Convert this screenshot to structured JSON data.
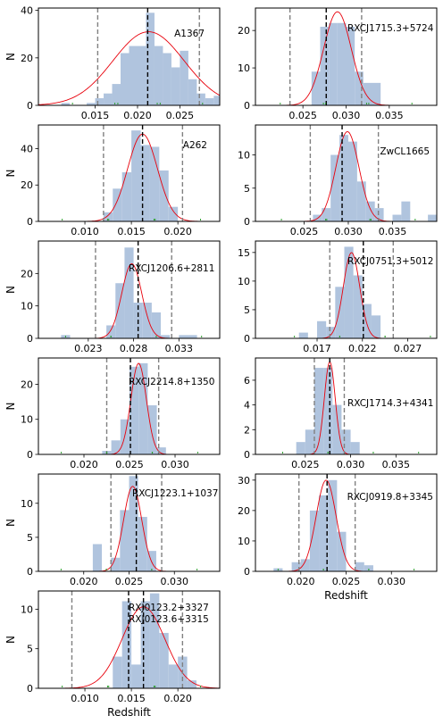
{
  "chart_data": [
    {
      "type": "bar",
      "title": "A1367",
      "xlabel": "",
      "ylabel": "N",
      "xlim": [
        0.0083,
        0.0297
      ],
      "ylim": [
        0,
        41
      ],
      "xticks": [
        0.015,
        0.02,
        0.025
      ],
      "xtick_labels": [
        "0.015",
        "0.020",
        "0.025"
      ],
      "yticks": [
        0,
        20,
        40
      ],
      "ytick_labels": [
        "0",
        "20",
        "40"
      ],
      "bins": [
        0.0115,
        0.0125,
        0.0135,
        0.0145,
        0.0155,
        0.0165,
        0.0175,
        0.0185,
        0.0195,
        0.0205,
        0.0215,
        0.0225,
        0.0235,
        0.0245,
        0.0255,
        0.0265,
        0.0275,
        0.0285,
        0.0295
      ],
      "counts": [
        1,
        0,
        0,
        1,
        3,
        5,
        9,
        22,
        25,
        25,
        39,
        25,
        22,
        16,
        23,
        11,
        5,
        3,
        4
      ],
      "gauss_curve": {
        "mu": 0.0213,
        "sigma": 0.0042,
        "peak": 31
      },
      "center_line": 0.0212,
      "limit_lines": [
        0.0153,
        0.0273
      ],
      "grid": false
    },
    {
      "type": "bar",
      "title": "RXCJ1715.3+5724",
      "xlabel": "",
      "ylabel": "",
      "xlim": [
        0.0195,
        0.0405
      ],
      "ylim": [
        0,
        26
      ],
      "xticks": [
        0.025,
        0.03,
        0.035
      ],
      "xtick_labels": [
        "0.025",
        "0.030",
        "0.035"
      ],
      "yticks": [
        0,
        10,
        20
      ],
      "ytick_labels": [
        "0",
        "10",
        "20"
      ],
      "bins": [
        0.0265,
        0.0275,
        0.0285,
        0.0295,
        0.0305,
        0.0315,
        0.0325,
        0.0335
      ],
      "counts": [
        9,
        21,
        22,
        22,
        21,
        9,
        6,
        6
      ],
      "gauss_curve": {
        "mu": 0.029,
        "sigma": 0.0016,
        "peak": 25
      },
      "center_line": 0.0277,
      "limit_lines": [
        0.0235,
        0.0318
      ],
      "grid": false
    },
    {
      "type": "bar",
      "title": "A262",
      "xlabel": "",
      "ylabel": "N",
      "xlim": [
        0.005,
        0.0245
      ],
      "ylim": [
        0,
        53
      ],
      "xticks": [
        0.01,
        0.015,
        0.02
      ],
      "xtick_labels": [
        "0.010",
        "0.015",
        "0.020"
      ],
      "yticks": [
        0,
        20,
        40
      ],
      "ytick_labels": [
        "0",
        "20",
        "40"
      ],
      "bins": [
        0.0125,
        0.0135,
        0.0145,
        0.0155,
        0.0165,
        0.0175,
        0.0185,
        0.0195
      ],
      "counts": [
        5,
        18,
        27,
        50,
        42,
        41,
        28,
        8
      ],
      "gauss_curve": {
        "mu": 0.0162,
        "sigma": 0.0016,
        "peak": 48
      },
      "center_line": 0.0162,
      "limit_lines": [
        0.012,
        0.0205
      ],
      "grid": false
    },
    {
      "type": "bar",
      "title": "ZwCL1665",
      "xlabel": "",
      "ylabel": "",
      "xlim": [
        0.0195,
        0.04
      ],
      "ylim": [
        0,
        14.5
      ],
      "xticks": [
        0.025,
        0.03,
        0.035
      ],
      "xtick_labels": [
        "0.025",
        "0.030",
        "0.035"
      ],
      "yticks": [
        0,
        5,
        10
      ],
      "ytick_labels": [
        "0",
        "5",
        "10"
      ],
      "bins": [
        0.0265,
        0.0275,
        0.0285,
        0.0295,
        0.0305,
        0.0315,
        0.0325,
        0.0335,
        0.0345,
        0.0355,
        0.0365,
        0.0375,
        0.0395
      ],
      "counts": [
        1,
        2,
        10,
        13,
        12,
        6,
        3,
        2,
        0,
        1,
        3,
        0,
        1
      ],
      "gauss_curve": {
        "mu": 0.0299,
        "sigma": 0.0013,
        "peak": 13.5
      },
      "center_line": 0.0293,
      "limit_lines": [
        0.0257,
        0.0334
      ],
      "grid": false
    },
    {
      "type": "bar",
      "title": "RXCJ1206.6+2811",
      "xlabel": "",
      "ylabel": "N",
      "xlim": [
        0.0175,
        0.0375
      ],
      "ylim": [
        0,
        30
      ],
      "xticks": [
        0.023,
        0.028,
        0.033
      ],
      "xtick_labels": [
        "0.023",
        "0.028",
        "0.033"
      ],
      "bins": [
        0.0205,
        0.0255,
        0.0265,
        0.0275,
        0.0285,
        0.0295,
        0.0305,
        0.0315,
        0.0335,
        0.0345
      ],
      "counts": [
        1,
        4,
        17,
        28,
        11,
        11,
        8,
        1,
        1,
        1
      ],
      "yticks": [
        0,
        10,
        20
      ],
      "ytick_labels": [
        "0",
        "10",
        "20"
      ],
      "gauss_curve": {
        "mu": 0.0278,
        "sigma": 0.0011,
        "peak": 23
      },
      "center_line": 0.0285,
      "limit_lines": [
        0.0238,
        0.0322
      ],
      "grid": false
    },
    {
      "type": "bar",
      "title": "RXCJ0751.3+5012",
      "xlabel": "",
      "ylabel": "",
      "xlim": [
        0.0102,
        0.0302
      ],
      "ylim": [
        0,
        17
      ],
      "xticks": [
        0.017,
        0.022,
        0.027
      ],
      "xtick_labels": [
        "0.017",
        "0.022",
        "0.027"
      ],
      "yticks": [
        0,
        5,
        10,
        15
      ],
      "ytick_labels": [
        "0",
        "5",
        "10",
        "15"
      ],
      "bins": [
        0.0155,
        0.0175,
        0.0185,
        0.0195,
        0.0205,
        0.0215,
        0.0225,
        0.0235
      ],
      "counts": [
        1,
        3,
        2,
        9,
        16,
        11,
        6,
        4
      ],
      "gauss_curve": {
        "mu": 0.0208,
        "sigma": 0.0009,
        "peak": 15
      },
      "center_line": 0.0221,
      "limit_lines": [
        0.0184,
        0.0254
      ],
      "grid": false
    },
    {
      "type": "bar",
      "title": "RXCJ2214.8+1350",
      "xlabel": "",
      "ylabel": "N",
      "xlim": [
        0.015,
        0.0349
      ],
      "ylim": [
        0,
        27.5
      ],
      "xticks": [
        0.02,
        0.025,
        0.03
      ],
      "xtick_labels": [
        "0.020",
        "0.025",
        "0.030"
      ],
      "yticks": [
        0,
        10,
        20
      ],
      "ytick_labels": [
        "0",
        "10",
        "20"
      ],
      "bins": [
        0.0225,
        0.0235,
        0.0245,
        0.0255,
        0.0265,
        0.0275,
        0.0285
      ],
      "counts": [
        1,
        4,
        10,
        25,
        26,
        14,
        2
      ],
      "gauss_curve": {
        "mu": 0.026,
        "sigma": 0.00085,
        "peak": 26
      },
      "center_line": 0.0251,
      "limit_lines": [
        0.0225,
        0.0282
      ],
      "grid": false
    },
    {
      "type": "bar",
      "title": "RXCJ1714.3+4341",
      "xlabel": "",
      "ylabel": "",
      "xlim": [
        0.0195,
        0.0395
      ],
      "ylim": [
        0,
        7.8
      ],
      "xticks": [
        0.025,
        0.03,
        0.035
      ],
      "xtick_labels": [
        "0.025",
        "0.030",
        "0.035"
      ],
      "yticks": [
        0,
        2,
        4,
        6
      ],
      "ytick_labels": [
        "0",
        "2",
        "4",
        "6"
      ],
      "bins": [
        0.0245,
        0.0255,
        0.0265,
        0.0275,
        0.0285,
        0.0295,
        0.0305
      ],
      "counts": [
        1,
        2,
        7,
        7,
        4,
        2,
        1
      ],
      "gauss_curve": {
        "mu": 0.0277,
        "sigma": 0.0006,
        "peak": 7.5
      },
      "center_line": 0.0277,
      "limit_lines": [
        0.026,
        0.0293
      ],
      "grid": false
    },
    {
      "type": "bar",
      "title": "RXCJ1223.1+1037",
      "xlabel": "",
      "ylabel": "N",
      "xlim": [
        0.015,
        0.035
      ],
      "ylim": [
        0,
        14.3
      ],
      "xticks": [
        0.02,
        0.025,
        0.03
      ],
      "xtick_labels": [
        "0.020",
        "0.025",
        "0.030"
      ],
      "yticks": [
        0,
        5,
        10
      ],
      "ytick_labels": [
        "0",
        "5",
        "10"
      ],
      "bins": [
        0.0215,
        0.0235,
        0.0245,
        0.0255,
        0.0265,
        0.0275
      ],
      "counts": [
        4,
        2,
        9,
        14,
        8,
        3
      ],
      "gauss_curve": {
        "mu": 0.0254,
        "sigma": 0.001,
        "peak": 12.5
      },
      "center_line": 0.0258,
      "limit_lines": [
        0.023,
        0.0286
      ],
      "grid": false
    },
    {
      "type": "bar",
      "title": "RXCJ0919.8+3345",
      "xlabel": "Redshift",
      "ylabel": "",
      "xlim": [
        0.015,
        0.035
      ],
      "ylim": [
        0,
        32
      ],
      "xticks": [
        0.02,
        0.025,
        0.03
      ],
      "xtick_labels": [
        "0.020",
        "0.025",
        "0.030"
      ],
      "yticks": [
        0,
        10,
        20,
        30
      ],
      "ytick_labels": [
        "0",
        "10",
        "20",
        "30"
      ],
      "bins": [
        0.0175,
        0.0195,
        0.0205,
        0.0215,
        0.0225,
        0.0235,
        0.0245,
        0.0255,
        0.0265,
        0.0275
      ],
      "counts": [
        1,
        3,
        4,
        20,
        25,
        30,
        13,
        0,
        3,
        2
      ],
      "gauss_curve": {
        "mu": 0.0228,
        "sigma": 0.0011,
        "peak": 30
      },
      "center_line": 0.0229,
      "limit_lines": [
        0.0198,
        0.026
      ],
      "grid": false
    },
    {
      "type": "bar",
      "title": "RXJ0123.2+3327\nRXJ0123.6+3315",
      "xlabel": "Redshift",
      "ylabel": "N",
      "xlim": [
        0.005,
        0.0245
      ],
      "ylim": [
        0,
        12.3
      ],
      "xticks": [
        0.01,
        0.015,
        0.02
      ],
      "xtick_labels": [
        "0.010",
        "0.015",
        "0.020"
      ],
      "yticks": [
        0,
        5,
        10
      ],
      "ytick_labels": [
        "0",
        "5",
        "10"
      ],
      "bins": [
        0.0135,
        0.0145,
        0.0155,
        0.0165,
        0.0175,
        0.0185,
        0.0195,
        0.0205,
        0.0215
      ],
      "counts": [
        4,
        11,
        3,
        11,
        12,
        7,
        3,
        4,
        1
      ],
      "gauss_curve": {
        "mu": 0.0163,
        "sigma": 0.0023,
        "peak": 10.3
      },
      "center_line": 0.0163,
      "center_line_2": 0.0147,
      "limit_lines": [
        0.0086,
        0.0205
      ],
      "grid": false
    }
  ]
}
